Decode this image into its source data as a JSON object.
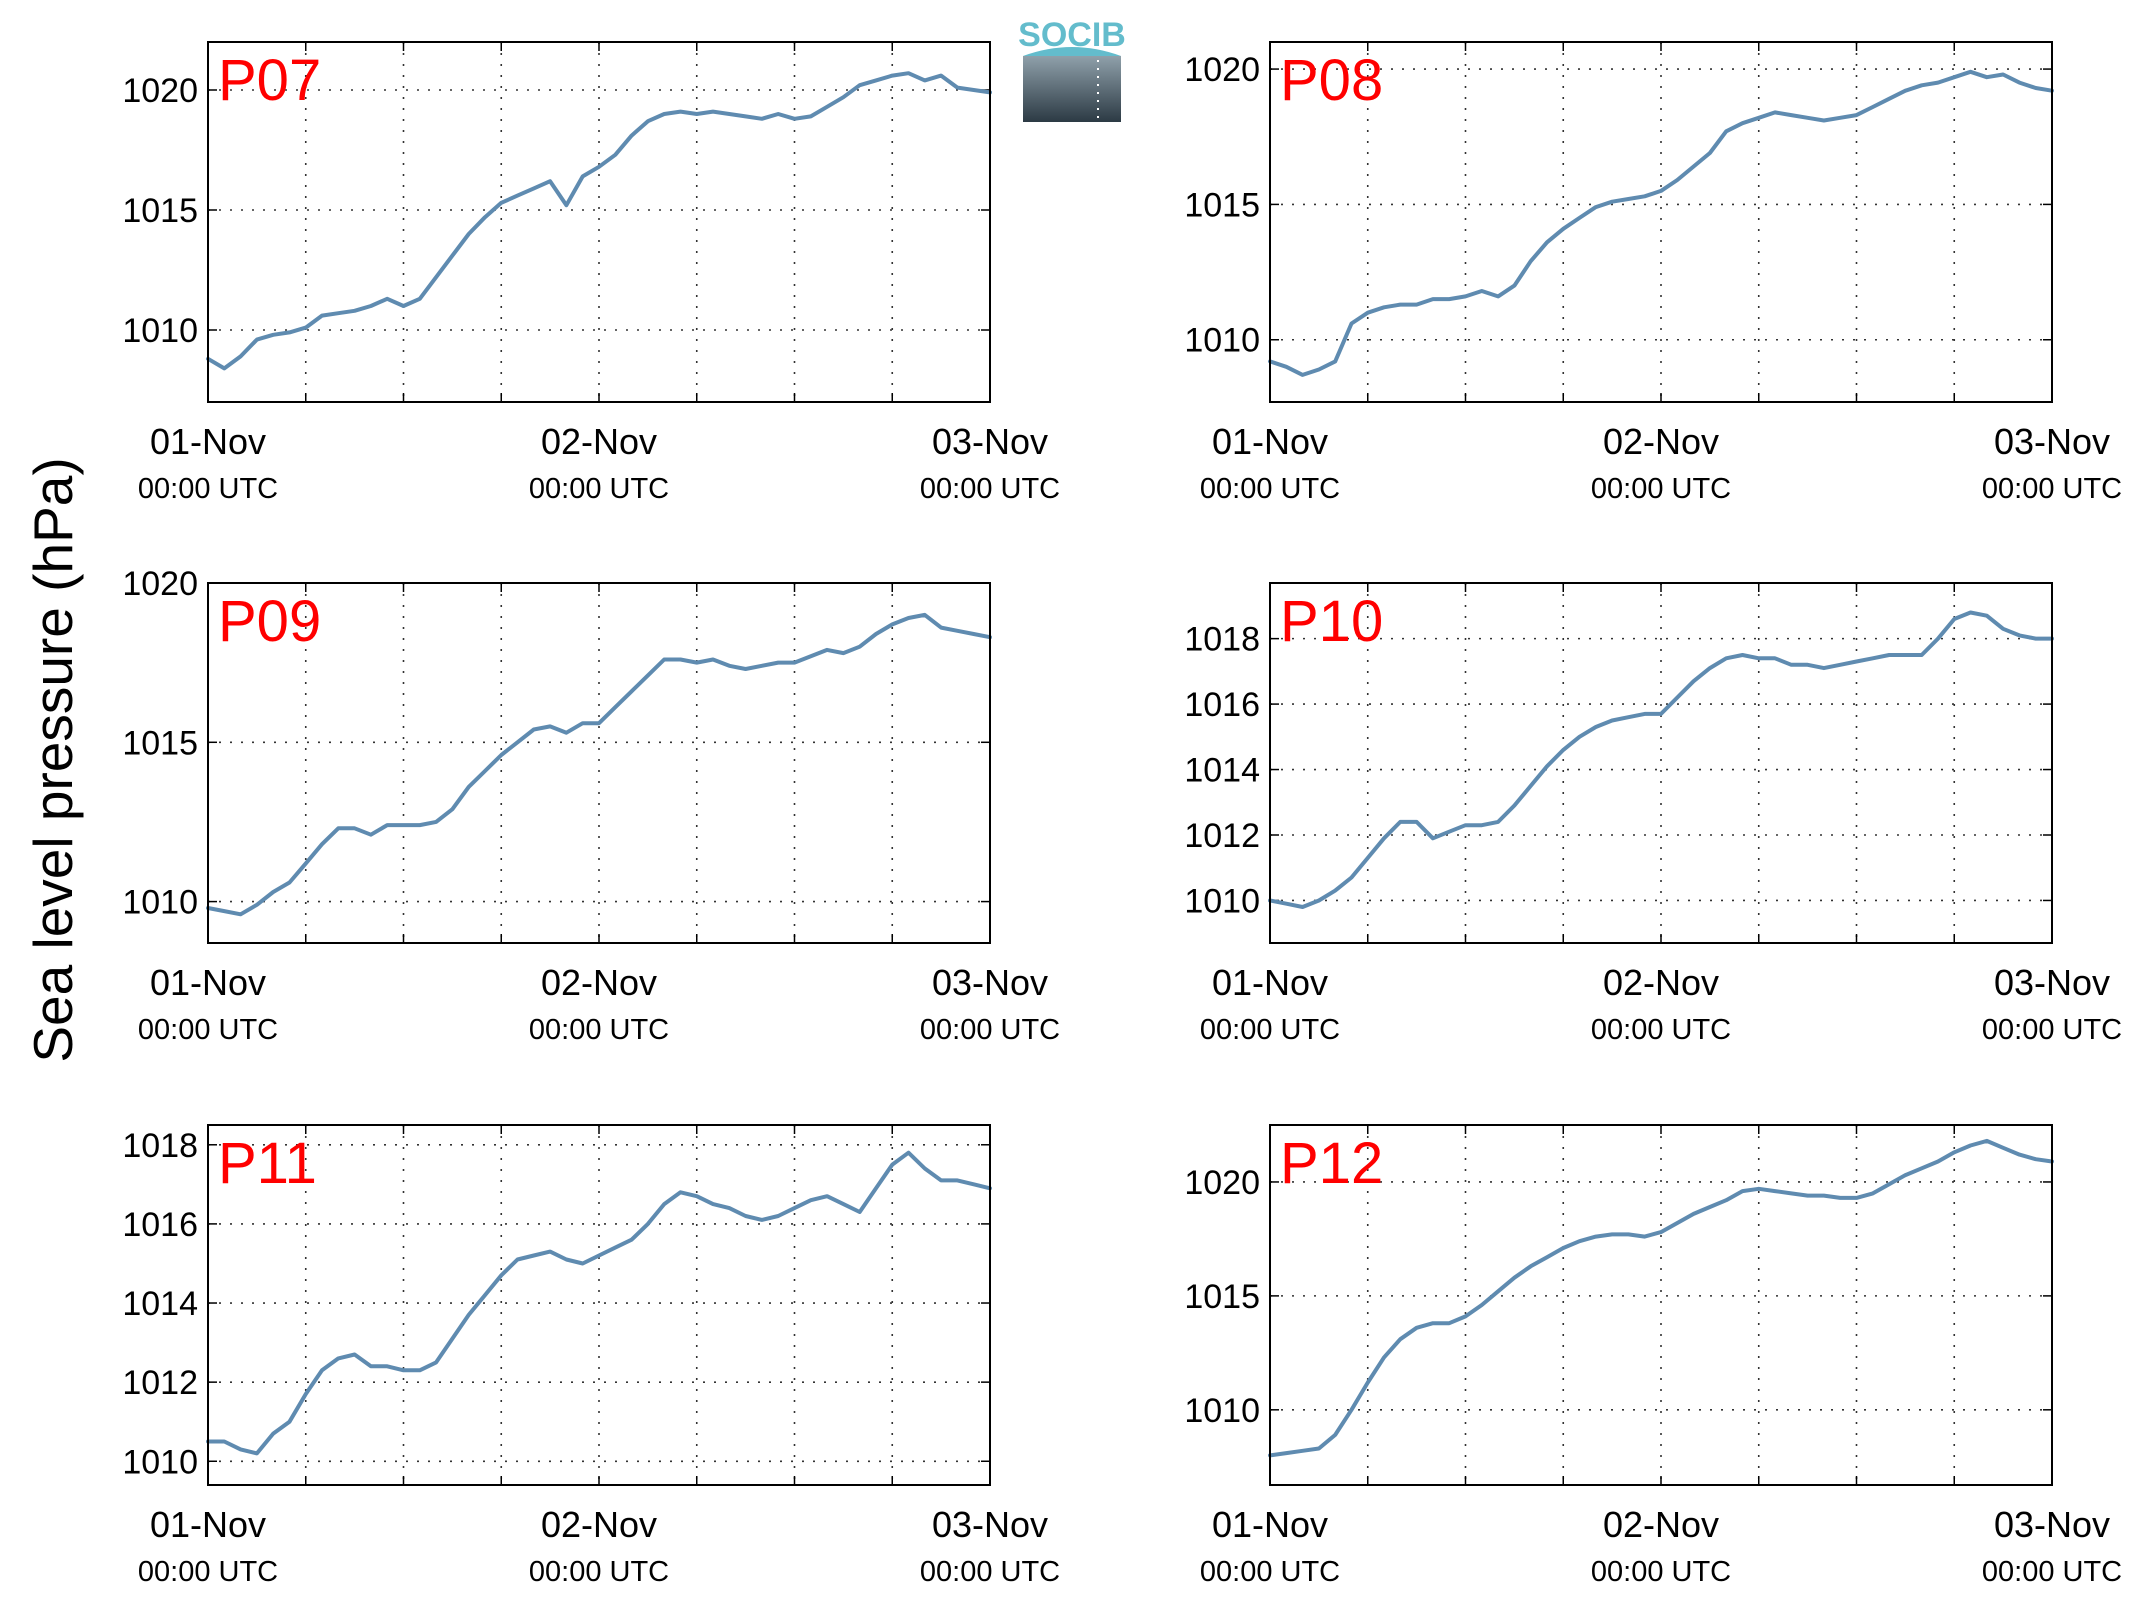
{
  "colors": {
    "line": "#5f8bb0",
    "label": "#ff0000",
    "axis": "#000000",
    "grid": "#333333",
    "logo_text": "#63bccc"
  },
  "logo": {
    "text": "SOCIB",
    "icon": "socib-logo"
  },
  "ylabel": "Sea level pressure (hPa)",
  "x_tick_labels": [
    {
      "date": "01-Nov",
      "time": "00:00 UTC"
    },
    {
      "date": "02-Nov",
      "time": "00:00 UTC"
    },
    {
      "date": "03-Nov",
      "time": "00:00 UTC"
    }
  ],
  "chart_data": [
    {
      "type": "line",
      "label": "P07",
      "xlim": [
        0,
        48
      ],
      "ylim": [
        1007,
        1022
      ],
      "yticks": [
        1010,
        1015,
        1020
      ],
      "xticks": [
        0,
        6,
        12,
        18,
        24,
        30,
        36,
        42,
        48
      ],
      "grid": true,
      "x": [
        0,
        1,
        2,
        3,
        4,
        5,
        6,
        7,
        8,
        9,
        10,
        11,
        12,
        13,
        14,
        15,
        16,
        17,
        18,
        19,
        20,
        21,
        22,
        23,
        24,
        25,
        26,
        27,
        28,
        29,
        30,
        31,
        32,
        33,
        34,
        35,
        36,
        37,
        38,
        39,
        40,
        41,
        42,
        43,
        44,
        45,
        46,
        47,
        48
      ],
      "y": [
        1008.8,
        1008.4,
        1008.9,
        1009.6,
        1009.8,
        1009.9,
        1010.1,
        1010.6,
        1010.7,
        1010.8,
        1011.0,
        1011.3,
        1011.0,
        1011.3,
        1012.2,
        1013.1,
        1014.0,
        1014.7,
        1015.3,
        1015.6,
        1015.9,
        1016.2,
        1015.2,
        1016.4,
        1016.8,
        1017.3,
        1018.1,
        1018.7,
        1019.0,
        1019.1,
        1019.0,
        1019.1,
        1019.0,
        1018.9,
        1018.8,
        1019.0,
        1018.8,
        1018.9,
        1019.3,
        1019.7,
        1020.2,
        1020.4,
        1020.6,
        1020.7,
        1020.4,
        1020.6,
        1020.1,
        1020.0,
        1019.9
      ]
    },
    {
      "type": "line",
      "label": "P08",
      "xlim": [
        0,
        48
      ],
      "ylim": [
        1007.7,
        1021
      ],
      "yticks": [
        1010,
        1015,
        1020
      ],
      "xticks": [
        0,
        6,
        12,
        18,
        24,
        30,
        36,
        42,
        48
      ],
      "grid": true,
      "x": [
        0,
        1,
        2,
        3,
        4,
        5,
        6,
        7,
        8,
        9,
        10,
        11,
        12,
        13,
        14,
        15,
        16,
        17,
        18,
        19,
        20,
        21,
        22,
        23,
        24,
        25,
        26,
        27,
        28,
        29,
        30,
        31,
        32,
        33,
        34,
        35,
        36,
        37,
        38,
        39,
        40,
        41,
        42,
        43,
        44,
        45,
        46,
        47,
        48
      ],
      "y": [
        1009.2,
        1009.0,
        1008.7,
        1008.9,
        1009.2,
        1010.6,
        1011.0,
        1011.2,
        1011.3,
        1011.3,
        1011.5,
        1011.5,
        1011.6,
        1011.8,
        1011.6,
        1012.0,
        1012.9,
        1013.6,
        1014.1,
        1014.5,
        1014.9,
        1015.1,
        1015.2,
        1015.3,
        1015.5,
        1015.9,
        1016.4,
        1016.9,
        1017.7,
        1018.0,
        1018.2,
        1018.4,
        1018.3,
        1018.2,
        1018.1,
        1018.2,
        1018.3,
        1018.6,
        1018.9,
        1019.2,
        1019.4,
        1019.5,
        1019.7,
        1019.9,
        1019.7,
        1019.8,
        1019.5,
        1019.3,
        1019.2
      ]
    },
    {
      "type": "line",
      "label": "P09",
      "xlim": [
        0,
        48
      ],
      "ylim": [
        1008.7,
        1020
      ],
      "yticks": [
        1010,
        1015,
        1020
      ],
      "xticks": [
        0,
        6,
        12,
        18,
        24,
        30,
        36,
        42,
        48
      ],
      "grid": true,
      "x": [
        0,
        1,
        2,
        3,
        4,
        5,
        6,
        7,
        8,
        9,
        10,
        11,
        12,
        13,
        14,
        15,
        16,
        17,
        18,
        19,
        20,
        21,
        22,
        23,
        24,
        25,
        26,
        27,
        28,
        29,
        30,
        31,
        32,
        33,
        34,
        35,
        36,
        37,
        38,
        39,
        40,
        41,
        42,
        43,
        44,
        45,
        46,
        47,
        48
      ],
      "y": [
        1009.8,
        1009.7,
        1009.6,
        1009.9,
        1010.3,
        1010.6,
        1011.2,
        1011.8,
        1012.3,
        1012.3,
        1012.1,
        1012.4,
        1012.4,
        1012.4,
        1012.5,
        1012.9,
        1013.6,
        1014.1,
        1014.6,
        1015.0,
        1015.4,
        1015.5,
        1015.3,
        1015.6,
        1015.6,
        1016.1,
        1016.6,
        1017.1,
        1017.6,
        1017.6,
        1017.5,
        1017.6,
        1017.4,
        1017.3,
        1017.4,
        1017.5,
        1017.5,
        1017.7,
        1017.9,
        1017.8,
        1018.0,
        1018.4,
        1018.7,
        1018.9,
        1019.0,
        1018.6,
        1018.5,
        1018.4,
        1018.3
      ]
    },
    {
      "type": "line",
      "label": "P10",
      "xlim": [
        0,
        48
      ],
      "ylim": [
        1008.7,
        1019.7
      ],
      "yticks": [
        1010,
        1012,
        1014,
        1016,
        1018
      ],
      "xticks": [
        0,
        6,
        12,
        18,
        24,
        30,
        36,
        42,
        48
      ],
      "grid": true,
      "x": [
        0,
        1,
        2,
        3,
        4,
        5,
        6,
        7,
        8,
        9,
        10,
        11,
        12,
        13,
        14,
        15,
        16,
        17,
        18,
        19,
        20,
        21,
        22,
        23,
        24,
        25,
        26,
        27,
        28,
        29,
        30,
        31,
        32,
        33,
        34,
        35,
        36,
        37,
        38,
        39,
        40,
        41,
        42,
        43,
        44,
        45,
        46,
        47,
        48
      ],
      "y": [
        1010.0,
        1009.9,
        1009.8,
        1010.0,
        1010.3,
        1010.7,
        1011.3,
        1011.9,
        1012.4,
        1012.4,
        1011.9,
        1012.1,
        1012.3,
        1012.3,
        1012.4,
        1012.9,
        1013.5,
        1014.1,
        1014.6,
        1015.0,
        1015.3,
        1015.5,
        1015.6,
        1015.7,
        1015.7,
        1016.2,
        1016.7,
        1017.1,
        1017.4,
        1017.5,
        1017.4,
        1017.4,
        1017.2,
        1017.2,
        1017.1,
        1017.2,
        1017.3,
        1017.4,
        1017.5,
        1017.5,
        1017.5,
        1018.0,
        1018.6,
        1018.8,
        1018.7,
        1018.3,
        1018.1,
        1018.0,
        1018.0
      ]
    },
    {
      "type": "line",
      "label": "P11",
      "xlim": [
        0,
        48
      ],
      "ylim": [
        1009.4,
        1018.5
      ],
      "yticks": [
        1010,
        1012,
        1014,
        1016,
        1018
      ],
      "xticks": [
        0,
        6,
        12,
        18,
        24,
        30,
        36,
        42,
        48
      ],
      "grid": true,
      "x": [
        0,
        1,
        2,
        3,
        4,
        5,
        6,
        7,
        8,
        9,
        10,
        11,
        12,
        13,
        14,
        15,
        16,
        17,
        18,
        19,
        20,
        21,
        22,
        23,
        24,
        25,
        26,
        27,
        28,
        29,
        30,
        31,
        32,
        33,
        34,
        35,
        36,
        37,
        38,
        39,
        40,
        41,
        42,
        43,
        44,
        45,
        46,
        47,
        48
      ],
      "y": [
        1010.5,
        1010.5,
        1010.3,
        1010.2,
        1010.7,
        1011.0,
        1011.7,
        1012.3,
        1012.6,
        1012.7,
        1012.4,
        1012.4,
        1012.3,
        1012.3,
        1012.5,
        1013.1,
        1013.7,
        1014.2,
        1014.7,
        1015.1,
        1015.2,
        1015.3,
        1015.1,
        1015.0,
        1015.2,
        1015.4,
        1015.6,
        1016.0,
        1016.5,
        1016.8,
        1016.7,
        1016.5,
        1016.4,
        1016.2,
        1016.1,
        1016.2,
        1016.4,
        1016.6,
        1016.7,
        1016.5,
        1016.3,
        1016.9,
        1017.5,
        1017.8,
        1017.4,
        1017.1,
        1017.1,
        1017.0,
        1016.9
      ]
    },
    {
      "type": "line",
      "label": "P12",
      "xlim": [
        0,
        48
      ],
      "ylim": [
        1006.7,
        1022.5
      ],
      "yticks": [
        1010,
        1015,
        1020
      ],
      "xticks": [
        0,
        6,
        12,
        18,
        24,
        30,
        36,
        42,
        48
      ],
      "grid": true,
      "x": [
        0,
        1,
        2,
        3,
        4,
        5,
        6,
        7,
        8,
        9,
        10,
        11,
        12,
        13,
        14,
        15,
        16,
        17,
        18,
        19,
        20,
        21,
        22,
        23,
        24,
        25,
        26,
        27,
        28,
        29,
        30,
        31,
        32,
        33,
        34,
        35,
        36,
        37,
        38,
        39,
        40,
        41,
        42,
        43,
        44,
        45,
        46,
        47,
        48
      ],
      "y": [
        1008.0,
        1008.1,
        1008.2,
        1008.3,
        1008.9,
        1010.0,
        1011.2,
        1012.3,
        1013.1,
        1013.6,
        1013.8,
        1013.8,
        1014.1,
        1014.6,
        1015.2,
        1015.8,
        1016.3,
        1016.7,
        1017.1,
        1017.4,
        1017.6,
        1017.7,
        1017.7,
        1017.6,
        1017.8,
        1018.2,
        1018.6,
        1018.9,
        1019.2,
        1019.6,
        1019.7,
        1019.6,
        1019.5,
        1019.4,
        1019.4,
        1019.3,
        1019.3,
        1019.5,
        1019.9,
        1020.3,
        1020.6,
        1020.9,
        1021.3,
        1021.6,
        1021.8,
        1021.5,
        1021.2,
        1021.0,
        1020.9
      ]
    }
  ]
}
